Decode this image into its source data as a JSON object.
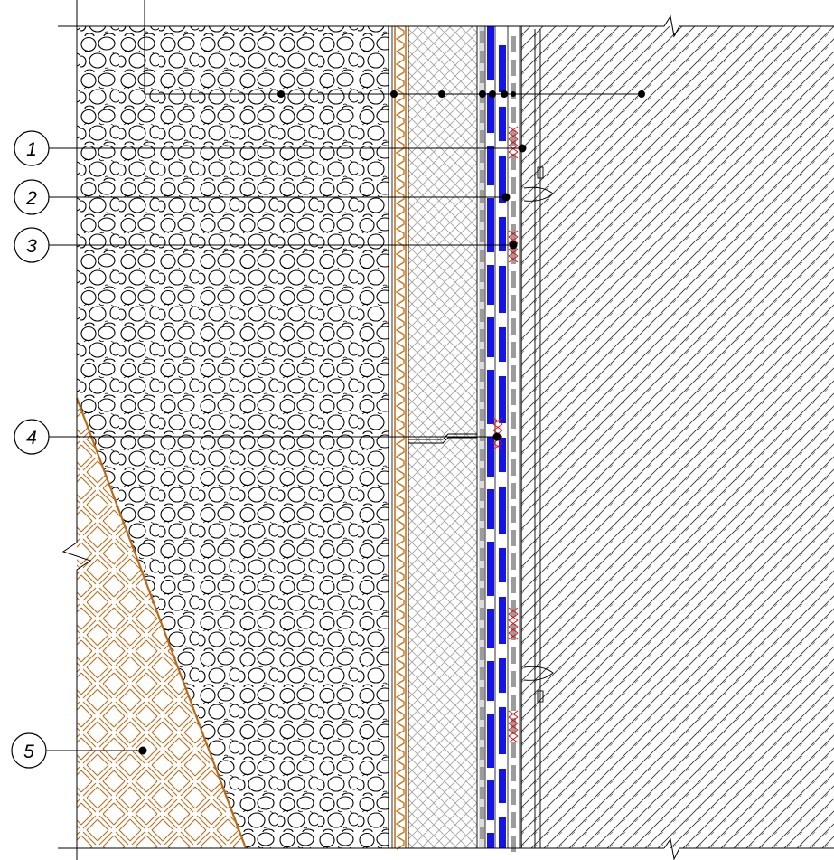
{
  "diagram": {
    "type": "architectural-wall-section-detail",
    "colors": {
      "background": "#ffffff",
      "line": "#000000",
      "gravel_fill": "#ffffff",
      "soil_hatch": "#b86a1a",
      "drainage_membrane": "#c8741e",
      "insulation_hatch": "#9a9a9a",
      "waterproofing_blue": "#1414e6",
      "sealant_red": "#e01010",
      "concrete_hatch": "#333333"
    },
    "callouts": [
      {
        "id": "1",
        "label": "1"
      },
      {
        "id": "2",
        "label": "2"
      },
      {
        "id": "3",
        "label": "3"
      },
      {
        "id": "4",
        "label": "4"
      },
      {
        "id": "5",
        "label": "5"
      }
    ]
  }
}
